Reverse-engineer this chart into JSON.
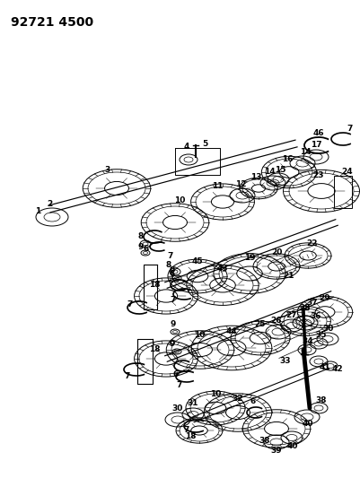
{
  "title": "92721 4500",
  "bg_color": "#ffffff",
  "title_fontsize": 10,
  "fig_width": 4.02,
  "fig_height": 5.33,
  "dpi": 100,
  "label_fontsize": 6.0
}
